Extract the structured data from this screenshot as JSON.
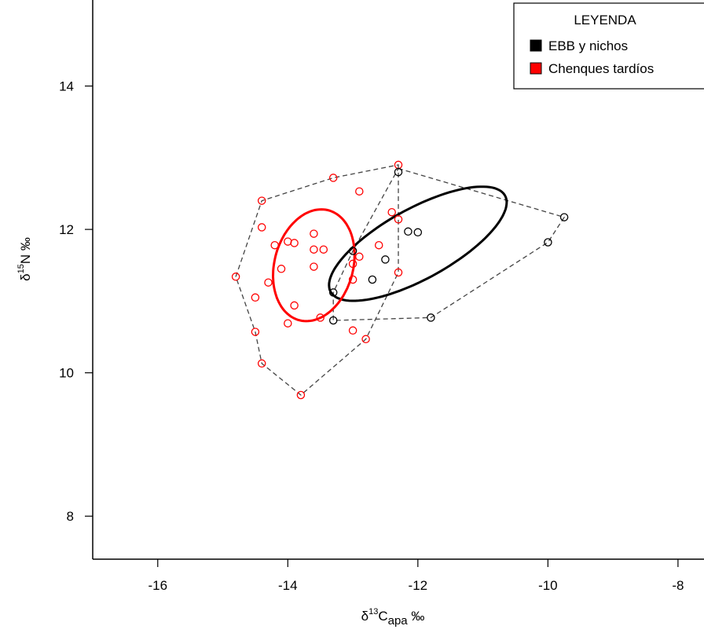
{
  "chart_data": {
    "type": "scatter",
    "title": "",
    "xlabel": {
      "prefix": "δ",
      "sup": "13",
      "main": "C",
      "sub": "apa",
      "suffix": " ‰"
    },
    "ylabel": {
      "prefix": "δ",
      "sup": "15",
      "main": "N",
      "suffix": " ‰"
    },
    "xlim": [
      -17.0,
      -7.6
    ],
    "ylim": [
      7.4,
      15.2
    ],
    "xticks": [
      -16,
      -14,
      -12,
      -10,
      -8
    ],
    "yticks": [
      8,
      10,
      12,
      14
    ],
    "xtick_labels": [
      "-16",
      "-14",
      "-12",
      "-10",
      "-8"
    ],
    "ytick_labels": [
      "8",
      "10",
      "12",
      "14"
    ],
    "grid": false,
    "legend": {
      "title": "LEYENDA",
      "position": "top-right",
      "entries": [
        {
          "label": "EBB y nichos",
          "color": "#000000"
        },
        {
          "label": "Chenques tardíos",
          "color": "#ff0000"
        }
      ]
    },
    "series": [
      {
        "name": "EBB y nichos",
        "color": "#000000",
        "points": [
          [
            -12.3,
            12.8
          ],
          [
            -12.15,
            11.97
          ],
          [
            -12.0,
            11.96
          ],
          [
            -13.0,
            11.7
          ],
          [
            -12.5,
            11.58
          ],
          [
            -12.7,
            11.3
          ],
          [
            -13.3,
            11.12
          ],
          [
            -13.3,
            10.73
          ],
          [
            -11.8,
            10.77
          ],
          [
            -10.0,
            11.82
          ],
          [
            -9.75,
            12.17
          ]
        ],
        "hull": [
          [
            -12.3,
            12.85
          ],
          [
            -9.75,
            12.17
          ],
          [
            -10.0,
            11.82
          ],
          [
            -11.8,
            10.77
          ],
          [
            -13.3,
            10.73
          ],
          [
            -13.3,
            11.12
          ],
          [
            -13.0,
            11.7
          ]
        ],
        "ellipse": {
          "center": [
            -12.0,
            11.8
          ],
          "semi_major": 1.5,
          "semi_minor": 0.5,
          "angle_deg": 26
        }
      },
      {
        "name": "Chenques tardíos",
        "color": "#ff0000",
        "points": [
          [
            -12.3,
            12.9
          ],
          [
            -13.3,
            12.72
          ],
          [
            -12.9,
            12.53
          ],
          [
            -14.4,
            12.4
          ],
          [
            -12.4,
            12.24
          ],
          [
            -12.3,
            12.14
          ],
          [
            -14.4,
            12.03
          ],
          [
            -13.6,
            11.94
          ],
          [
            -13.9,
            11.81
          ],
          [
            -14.0,
            11.83
          ],
          [
            -14.2,
            11.78
          ],
          [
            -12.6,
            11.78
          ],
          [
            -13.6,
            11.72
          ],
          [
            -13.45,
            11.72
          ],
          [
            -13.0,
            11.52
          ],
          [
            -13.6,
            11.48
          ],
          [
            -14.1,
            11.45
          ],
          [
            -12.9,
            11.62
          ],
          [
            -14.8,
            11.34
          ],
          [
            -13.0,
            11.3
          ],
          [
            -12.3,
            11.4
          ],
          [
            -14.3,
            11.26
          ],
          [
            -14.5,
            11.05
          ],
          [
            -13.9,
            10.94
          ],
          [
            -13.5,
            10.77
          ],
          [
            -14.0,
            10.69
          ],
          [
            -13.0,
            10.59
          ],
          [
            -14.5,
            10.57
          ],
          [
            -12.8,
            10.47
          ],
          [
            -14.4,
            10.13
          ],
          [
            -13.8,
            9.69
          ]
        ],
        "hull": [
          [
            -12.3,
            12.9
          ],
          [
            -12.3,
            11.4
          ],
          [
            -12.8,
            10.47
          ],
          [
            -13.8,
            9.69
          ],
          [
            -14.4,
            10.13
          ],
          [
            -14.5,
            10.57
          ],
          [
            -14.8,
            11.34
          ],
          [
            -14.4,
            12.4
          ],
          [
            -13.3,
            12.72
          ]
        ],
        "ellipse": {
          "center": [
            -13.6,
            11.5
          ],
          "semi_major": 0.8,
          "semi_minor": 0.6,
          "angle_deg": 70
        }
      }
    ]
  }
}
